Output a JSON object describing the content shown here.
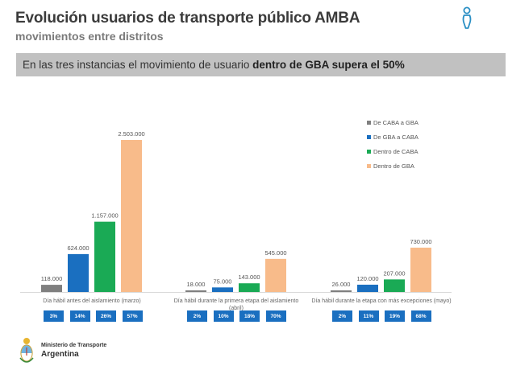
{
  "header": {
    "title": "Evolución usuarios de transporte público AMBA",
    "subtitle": "movimientos entre distritos",
    "icon": "person-icon"
  },
  "banner": {
    "text_prefix": "En las tres instancias el movimiento de usuario ",
    "text_bold": "dentro de GBA supera el 50%"
  },
  "footer": {
    "logo": "argentina-coat-of-arms-icon",
    "line1": "Ministerio de Transporte",
    "line2": "Argentina"
  },
  "chart_data": {
    "type": "bar",
    "title": "",
    "xlabel": "",
    "ylabel": "",
    "grid": false,
    "legend_position": "top-right",
    "ylim": [
      0,
      2503000
    ],
    "categories": [
      "Día hábil antes del aislamiento (marzo)",
      "Día hábil durante la primera etapa del aislamiento (abril)",
      "Día hábil durante la etapa con más excepciones (mayo)"
    ],
    "series": [
      {
        "name": "De CABA a GBA",
        "color": "#7f7f7f",
        "values": [
          118000,
          18000,
          26000
        ],
        "labels": [
          "118.000",
          "18.000",
          "26.000"
        ],
        "shares": [
          "3%",
          "2%",
          "2%"
        ]
      },
      {
        "name": "De GBA a CABA",
        "color": "#1a6fc0",
        "values": [
          624000,
          75000,
          120000
        ],
        "labels": [
          "624.000",
          "75.000",
          "120.000"
        ],
        "shares": [
          "14%",
          "10%",
          "11%"
        ]
      },
      {
        "name": "Dentro de CABA",
        "color": "#1aaa55",
        "values": [
          1157000,
          143000,
          207000
        ],
        "labels": [
          "1.157.000",
          "143.000",
          "207.000"
        ],
        "shares": [
          "26%",
          "18%",
          "19%"
        ]
      },
      {
        "name": "Dentro de GBA",
        "color": "#f8bb8a",
        "values": [
          2503000,
          545000,
          730000
        ],
        "labels": [
          "2.503.000",
          "545.000",
          "730.000"
        ],
        "shares": [
          "57%",
          "70%",
          "68%"
        ]
      }
    ]
  }
}
